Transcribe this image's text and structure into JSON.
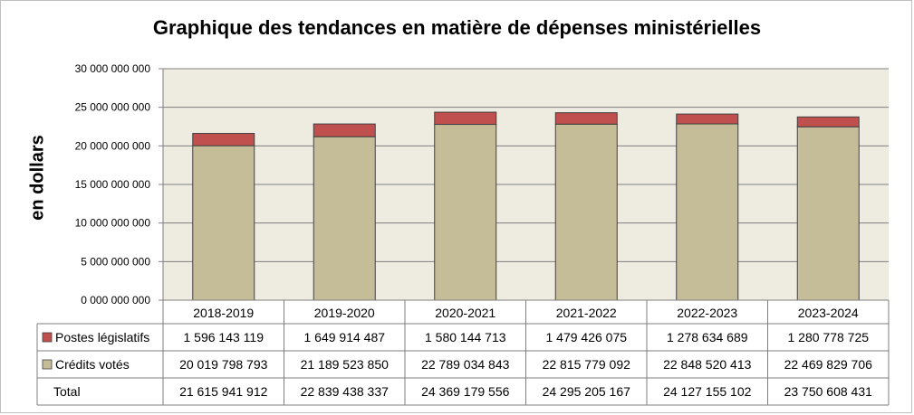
{
  "chart_data": {
    "type": "bar",
    "stacked": true,
    "title": "Graphique des tendances en matière de dépenses ministérielles",
    "ylabel": "en dollars",
    "ylim": [
      0,
      30000000000
    ],
    "yticks": [
      {
        "value": 0,
        "label": "0 000 000 000"
      },
      {
        "value": 5000000000,
        "label": "5 000 000 000"
      },
      {
        "value": 10000000000,
        "label": "10 000 000 000"
      },
      {
        "value": 15000000000,
        "label": "15 000 000 000"
      },
      {
        "value": 20000000000,
        "label": "20 000 000 000"
      },
      {
        "value": 25000000000,
        "label": "25 000 000 000"
      },
      {
        "value": 30000000000,
        "label": "30 000 000 000"
      }
    ],
    "categories": [
      "2018-2019",
      "2019-2020",
      "2020-2021",
      "2021-2022",
      "2022-2023",
      "2023-2024"
    ],
    "series": [
      {
        "name": "Crédits votés",
        "color": "#c4bd97",
        "values": [
          20019798793,
          21189523850,
          22789034843,
          22815779092,
          22848520413,
          22469829706
        ],
        "labels": [
          "20 019 798 793",
          "21 189 523 850",
          "22 789 034 843",
          "22 815 779 092",
          "22 848 520 413",
          "22 469 829 706"
        ]
      },
      {
        "name": "Postes législatifs",
        "color": "#c0504d",
        "values": [
          1596143119,
          1649914487,
          1580144713,
          1479426075,
          1278634689,
          1280778725
        ],
        "labels": [
          "1 596 143 119",
          "1 649 914 487",
          "1 580 144 713",
          "1 479 426 075",
          "1 278 634 689",
          "1 280 778 725"
        ]
      }
    ],
    "totals": {
      "name": "Total",
      "labels": [
        "21 615 941 912",
        "22 839 438 337",
        "24 369 179 556",
        "24 295 205 167",
        "24 127 155 102",
        "23 750 608 431"
      ]
    },
    "grid": true,
    "plot_background": "#eeece1",
    "legend": "data-table"
  }
}
